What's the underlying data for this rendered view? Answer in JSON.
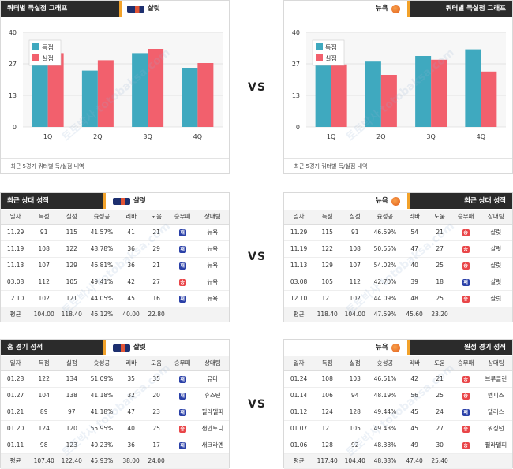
{
  "colors": {
    "header_bg": "#2b2b2b",
    "accent": "#f2a22a",
    "scored": "#3fa9bf",
    "allowed": "#f2606d",
    "win": "#e94548",
    "loss": "#2a40a8"
  },
  "vs_label": "VS",
  "watermark": "토토박사 totobaksa.com",
  "quarter_section": {
    "left": {
      "title": "쿼터별 득실점 그래프",
      "team": "샬럿",
      "note": "최근 5경기 쿼터별 득/실점 내역"
    },
    "right": {
      "title": "쿼터별 득실점 그래프",
      "team": "뉴욕",
      "note": "최근 5경기 쿼터별 득/실점 내역"
    }
  },
  "chart_data": [
    {
      "type": "bar",
      "categories": [
        "1Q",
        "2Q",
        "3Q",
        "4Q"
      ],
      "yticks": [
        "0",
        "13",
        "27",
        "40"
      ],
      "ylim": [
        0,
        40
      ],
      "legend_position": "top-left",
      "series": [
        {
          "name": "득점",
          "values": [
            26.6,
            23.8,
            31.2,
            25.0
          ]
        },
        {
          "name": "실점",
          "values": [
            31.2,
            28.2,
            33.0,
            27.0
          ]
        }
      ]
    },
    {
      "type": "bar",
      "categories": [
        "1Q",
        "2Q",
        "3Q",
        "4Q"
      ],
      "yticks": [
        "0",
        "13",
        "27",
        "40"
      ],
      "ylim": [
        0,
        40
      ],
      "legend_position": "top-left",
      "series": [
        {
          "name": "득점",
          "values": [
            26.6,
            27.6,
            30.0,
            32.8
          ]
        },
        {
          "name": "실점",
          "values": [
            26.4,
            22.0,
            28.4,
            23.4
          ]
        }
      ]
    }
  ],
  "recent_section": {
    "left": {
      "title": "최근 상대 성적",
      "team": "샬럿",
      "columns": [
        "일자",
        "득점",
        "실점",
        "슛성공",
        "리바",
        "도움",
        "승무패",
        "상대팀"
      ],
      "rows": [
        [
          "11.29",
          "91",
          "115",
          "41.57%",
          "41",
          "21",
          "패",
          "뉴욕"
        ],
        [
          "11.19",
          "108",
          "122",
          "48.78%",
          "36",
          "29",
          "패",
          "뉴욕"
        ],
        [
          "11.13",
          "107",
          "129",
          "46.81%",
          "36",
          "21",
          "패",
          "뉴욕"
        ],
        [
          "03.08",
          "112",
          "105",
          "49.41%",
          "42",
          "27",
          "승",
          "뉴욕"
        ],
        [
          "12.10",
          "102",
          "121",
          "44.05%",
          "45",
          "16",
          "패",
          "뉴욕"
        ]
      ],
      "avg": [
        "평균",
        "104.00",
        "118.40",
        "46.12%",
        "40.00",
        "22.80",
        "",
        ""
      ]
    },
    "right": {
      "title": "최근 상대 성적",
      "team": "뉴욕",
      "columns": [
        "일자",
        "득점",
        "실점",
        "슛성공",
        "리바",
        "도움",
        "승무패",
        "상대팀"
      ],
      "rows": [
        [
          "11.29",
          "115",
          "91",
          "46.59%",
          "54",
          "21",
          "승",
          "샬럿"
        ],
        [
          "11.19",
          "122",
          "108",
          "50.55%",
          "47",
          "27",
          "승",
          "샬럿"
        ],
        [
          "11.13",
          "129",
          "107",
          "54.02%",
          "40",
          "25",
          "승",
          "샬럿"
        ],
        [
          "03.08",
          "105",
          "112",
          "42.70%",
          "39",
          "18",
          "패",
          "샬럿"
        ],
        [
          "12.10",
          "121",
          "102",
          "44.09%",
          "48",
          "25",
          "승",
          "샬럿"
        ]
      ],
      "avg": [
        "평균",
        "118.40",
        "104.00",
        "47.59%",
        "45.60",
        "23.20",
        "",
        ""
      ]
    }
  },
  "game_section": {
    "left": {
      "title": "홈 경기 성적",
      "team": "샬럿",
      "columns": [
        "일자",
        "득점",
        "실점",
        "슛성공",
        "리바",
        "도움",
        "승무패",
        "상대팀"
      ],
      "rows": [
        [
          "01.28",
          "122",
          "134",
          "51.09%",
          "35",
          "35",
          "패",
          "유타"
        ],
        [
          "01.27",
          "104",
          "138",
          "41.18%",
          "32",
          "20",
          "패",
          "휴스턴"
        ],
        [
          "01.21",
          "89",
          "97",
          "41.18%",
          "47",
          "23",
          "패",
          "필라델피"
        ],
        [
          "01.20",
          "124",
          "120",
          "55.95%",
          "40",
          "25",
          "승",
          "샌안토니"
        ],
        [
          "01.11",
          "98",
          "123",
          "40.23%",
          "36",
          "17",
          "패",
          "새크라멘"
        ]
      ],
      "avg": [
        "평균",
        "107.40",
        "122.40",
        "45.93%",
        "38.00",
        "24.00",
        "",
        ""
      ]
    },
    "right": {
      "title": "원정 경기 성적",
      "team": "뉴욕",
      "columns": [
        "일자",
        "득점",
        "실점",
        "슛성공",
        "리바",
        "도움",
        "승무패",
        "상대팀"
      ],
      "rows": [
        [
          "01.24",
          "108",
          "103",
          "46.51%",
          "42",
          "21",
          "승",
          "브루클린"
        ],
        [
          "01.14",
          "106",
          "94",
          "48.19%",
          "56",
          "25",
          "승",
          "멤피스"
        ],
        [
          "01.12",
          "124",
          "128",
          "49.44%",
          "45",
          "24",
          "패",
          "댈러스"
        ],
        [
          "01.07",
          "121",
          "105",
          "49.43%",
          "45",
          "27",
          "승",
          "워싱턴"
        ],
        [
          "01.06",
          "128",
          "92",
          "48.38%",
          "49",
          "30",
          "승",
          "필라델피"
        ]
      ],
      "avg": [
        "평균",
        "117.40",
        "104.40",
        "48.38%",
        "47.40",
        "25.40",
        "",
        ""
      ]
    }
  }
}
